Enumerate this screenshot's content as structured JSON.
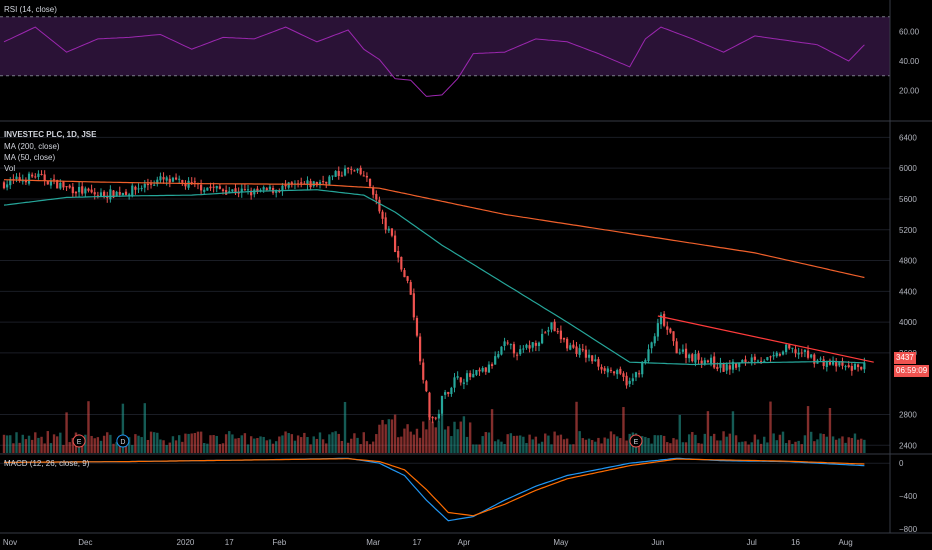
{
  "rsi_panel": {
    "label": "RSI (14, close)",
    "ticks": [
      "60.00",
      "40.00",
      "20.00"
    ],
    "tick_values": [
      60,
      40,
      20
    ],
    "band": [
      30,
      70
    ],
    "line_color": "#9c27b0",
    "band_fill": "#2a1236"
  },
  "price_panel": {
    "legend": {
      "symbol": "INVESTEC PLC, 1D, JSE",
      "ma200": "MA (200, close)",
      "ma50": "MA (50, close)",
      "vol": "Vol"
    },
    "price_ticks": [
      "6400",
      "6000",
      "5600",
      "5200",
      "4800",
      "4400",
      "4000",
      "3600",
      "2800",
      "2400"
    ],
    "price_tick_values": [
      6400,
      6000,
      5600,
      5200,
      4800,
      4400,
      4000,
      3600,
      2800,
      2400
    ],
    "last_price_tag": "3437",
    "countdown_tag": "06:59:09",
    "up_color": "#26a69a",
    "down_color": "#ef5350",
    "ma200_color": "#f0602b",
    "ma50_color": "#26a69a",
    "trendline_color": "#ff3b3b",
    "event_markers": [
      "E",
      "D",
      "E"
    ]
  },
  "macd_panel": {
    "label": "MACD (12, 26, close, 9)",
    "ticks": [
      "0",
      "−400",
      "−800"
    ],
    "tick_values": [
      0,
      -400,
      -800
    ],
    "macd_color": "#2196f3",
    "signal_color": "#ff6d00"
  },
  "time_axis": {
    "labels": [
      "Nov",
      "Dec",
      "2020",
      "17",
      "Feb",
      "Mar",
      "17",
      "Apr",
      "May",
      "Jun",
      "Jul",
      "16",
      "Aug"
    ],
    "label_days": [
      0,
      26,
      58,
      72,
      88,
      118,
      132,
      147,
      178,
      209,
      239,
      253,
      269
    ]
  },
  "chart_data": {
    "type": "candlestick",
    "title": "INVESTEC PLC, 1D, JSE",
    "xlabel": "",
    "ylabel": "",
    "x_range": [
      "Nov 2019",
      "Aug 2020"
    ],
    "series": [
      {
        "name": "MA (200, close)",
        "x_day": [
          0,
          30,
          60,
          100,
          120,
          160,
          200,
          240,
          275
        ],
        "values": [
          5850,
          5820,
          5800,
          5790,
          5740,
          5400,
          5150,
          4900,
          4580
        ]
      },
      {
        "name": "MA (50, close)",
        "x_day": [
          0,
          20,
          40,
          60,
          80,
          100,
          115,
          125,
          140,
          160,
          180,
          200,
          220,
          235,
          250,
          265,
          275
        ],
        "values": [
          5520,
          5620,
          5640,
          5650,
          5700,
          5720,
          5650,
          5430,
          5000,
          4500,
          4000,
          3480,
          3450,
          3470,
          3480,
          3490,
          3470
        ]
      }
    ],
    "trendline": {
      "x_day": [
        209,
        278
      ],
      "values": [
        4080,
        3480
      ]
    },
    "price_range": [
      2300,
      6600
    ],
    "rsi_range": [
      0,
      80
    ],
    "macd_range": [
      -850,
      100
    ],
    "candles_anchor": {
      "x_day": [
        0,
        10,
        20,
        30,
        40,
        50,
        60,
        70,
        80,
        90,
        100,
        110,
        115,
        118,
        121,
        124,
        127,
        130,
        132,
        134,
        136,
        138,
        140,
        144,
        150,
        155,
        160,
        165,
        170,
        175,
        180,
        185,
        190,
        195,
        200,
        205,
        210,
        215,
        220,
        225,
        230,
        235,
        240,
        245,
        250,
        255,
        260,
        265,
        270,
        275
      ],
      "close": [
        5800,
        5900,
        5750,
        5650,
        5700,
        5850,
        5780,
        5720,
        5680,
        5750,
        5800,
        5980,
        5900,
        5700,
        5300,
        5100,
        4700,
        4400,
        3800,
        3300,
        2800,
        2700,
        3000,
        3250,
        3300,
        3400,
        3700,
        3600,
        3750,
        3950,
        3700,
        3600,
        3450,
        3350,
        3200,
        3500,
        4050,
        3650,
        3550,
        3500,
        3400,
        3450,
        3550,
        3500,
        3650,
        3600,
        3500,
        3450,
        3400,
        3437
      ]
    },
    "macd_anchor": {
      "x_day": [
        0,
        40,
        80,
        110,
        120,
        128,
        135,
        142,
        150,
        160,
        170,
        180,
        200,
        215,
        230,
        250,
        275
      ],
      "macd": [
        10,
        20,
        40,
        60,
        0,
        -150,
        -450,
        -700,
        -650,
        -450,
        -280,
        -150,
        0,
        60,
        30,
        20,
        -30
      ],
      "signal": [
        10,
        20,
        40,
        55,
        20,
        -80,
        -320,
        -600,
        -640,
        -500,
        -330,
        -190,
        -30,
        50,
        40,
        25,
        -10
      ]
    },
    "rsi_anchor": {
      "x_day": [
        0,
        10,
        20,
        30,
        40,
        50,
        60,
        70,
        80,
        90,
        100,
        110,
        115,
        120,
        125,
        130,
        135,
        140,
        145,
        150,
        160,
        170,
        180,
        190,
        200,
        205,
        210,
        220,
        230,
        240,
        250,
        260,
        270,
        275
      ],
      "values": [
        55,
        60,
        48,
        52,
        58,
        55,
        50,
        53,
        57,
        60,
        55,
        58,
        50,
        38,
        30,
        24,
        18,
        14,
        30,
        42,
        48,
        52,
        55,
        42,
        38,
        52,
        65,
        52,
        48,
        54,
        56,
        48,
        42,
        48
      ]
    }
  }
}
